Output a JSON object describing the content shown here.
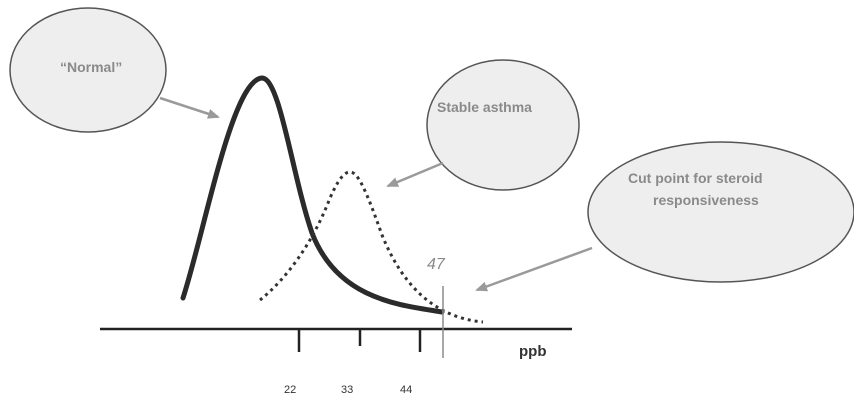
{
  "bubbles": {
    "normal": "“Normal”",
    "stable_asthma": "Stable asthma",
    "cut_point_line1": "Cut point for steroid",
    "cut_point_line2": "responsiveness"
  },
  "axis": {
    "unit_label": "ppb",
    "ticks": [
      "22",
      "33",
      "44"
    ]
  },
  "cut_point_value": "47",
  "colors": {
    "normal_curve": "#2b2b2b",
    "asthma_curve": "#333333",
    "bubble_fill": "#eeeeee",
    "bubble_text": "#8a8a8a",
    "arrow": "#9a9a9a",
    "cut_line": "#8a8a8a"
  }
}
